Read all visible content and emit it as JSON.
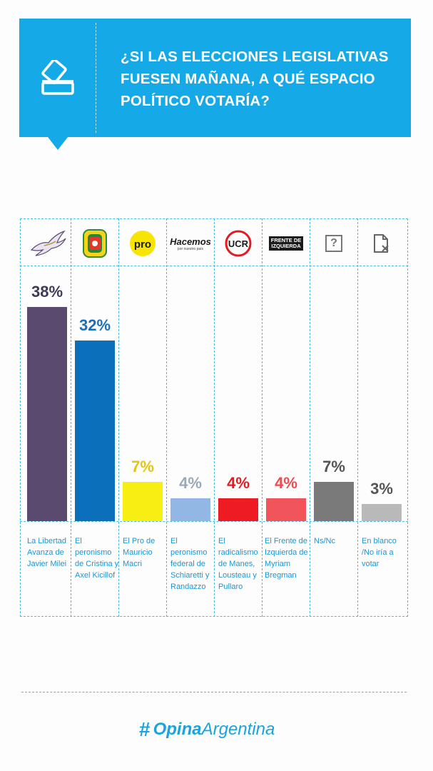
{
  "title": "¿SI LAS ELECCIONES LEGISLATIVAS FUESEN MAÑANA, A QUÉ ESPACIO POLÍTICO VOTARÍA?",
  "brand": {
    "hash": "#",
    "bold": "Opina",
    "light": "Argentina"
  },
  "logos": {
    "pro": "pro",
    "hacemos": "Hacemos",
    "hacemos_sub": "por nuestro país",
    "ucr": "UCR",
    "fit_line1": "FRENTE DE",
    "fit_line2": "IZQUIERDA",
    "nsnc": "?"
  },
  "chart_data": {
    "type": "bar",
    "title": "¿SI LAS ELECCIONES LEGISLATIVAS FUESEN MAÑANA, A QUÉ ESPACIO POLÍTICO VOTARÍA?",
    "ylim": [
      0,
      38
    ],
    "grid": false,
    "categories": [
      "La Libertad Avanza de Javier Milei",
      "El peronismo de Cristina y Axel Kicillof",
      "El Pro de Mauricio Macri",
      "El peronismo federal de Schiaretti y Randazzo",
      "El radicalismo de Manes, Lousteau y Pullaro",
      "El Frente de Izquierda de Myriam Bregman",
      "Ns/Nc",
      "En blanco /No iría a votar"
    ],
    "values": [
      38,
      32,
      7,
      4,
      4,
      4,
      7,
      3
    ],
    "value_labels": [
      "38%",
      "32%",
      "7%",
      "4%",
      "4%",
      "4%",
      "7%",
      "3%"
    ],
    "bar_colors": [
      "#5b4a6f",
      "#0c6fbc",
      "#f7ee13",
      "#92b7e4",
      "#ee1b23",
      "#f1545a",
      "#7a7a7a",
      "#b9b9b9"
    ],
    "label_colors": [
      "#3f3a55",
      "#1a6fbb",
      "#e3c411",
      "#9aa9b8",
      "#e21b23",
      "#ee4a50",
      "#555555",
      "#555555"
    ],
    "logo_icons": [
      "eagle-icon",
      "pj-shield-icon",
      "pro-logo-icon",
      "hacemos-logo-icon",
      "ucr-logo-icon",
      "fit-logo-icon",
      "question-box-icon",
      "blank-ballot-icon"
    ]
  }
}
